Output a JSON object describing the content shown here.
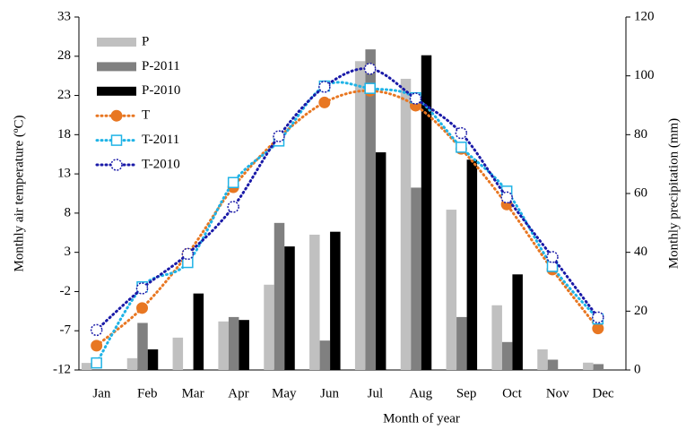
{
  "chart_data": {
    "type": "bar-line",
    "x_label": "Month  of year",
    "y_label": "Monthly air temperature (ºC)",
    "y2_label": "Monthly precipitation (mm)",
    "categories": [
      "Jan",
      "Feb",
      "Mar",
      "Apr",
      "May",
      "Jun",
      "Jul",
      "Aug",
      "Sep",
      "Oct",
      "Nov",
      "Dec"
    ],
    "ylim": [
      -12,
      33
    ],
    "yticks": [
      -12,
      -7,
      -2,
      3,
      8,
      13,
      18,
      23,
      28,
      33
    ],
    "y2lim": [
      0,
      120
    ],
    "y2ticks": [
      0,
      20,
      40,
      60,
      80,
      100,
      120
    ],
    "legend": "upper left",
    "series": [
      {
        "name": "P",
        "type": "bar",
        "axis": "y2",
        "color": "#c0c0c0",
        "values": [
          2.4,
          4,
          11,
          16.5,
          29,
          46,
          105,
          99,
          54.5,
          22,
          7,
          2.5
        ]
      },
      {
        "name": "P-2011",
        "type": "bar",
        "axis": "y2",
        "color": "#808080",
        "values": [
          0,
          16,
          0,
          18,
          50,
          10,
          109,
          62,
          18,
          9.5,
          3.5,
          2
        ]
      },
      {
        "name": "P-2010",
        "type": "bar",
        "axis": "y2",
        "color": "#000000",
        "values": [
          0,
          7,
          26,
          17,
          42,
          47,
          74,
          107,
          71.5,
          32.5,
          0,
          0
        ]
      },
      {
        "name": "T",
        "type": "line",
        "color": "#e87722",
        "marker": "filled-circle",
        "values": [
          -8.9,
          -4.1,
          2.8,
          11.3,
          17.6,
          22.1,
          23.6,
          21.7,
          16.2,
          9.1,
          0.8,
          -6.7
        ]
      },
      {
        "name": "T-2011",
        "type": "line",
        "color": "#1fb3e6",
        "marker": "open-square",
        "values": [
          -11.1,
          -1.4,
          1.7,
          11.9,
          17.2,
          24.2,
          23.9,
          22.7,
          16.4,
          10.8,
          1.2,
          -5.5
        ]
      },
      {
        "name": "T-2010",
        "type": "line",
        "color": "#1a1aa8",
        "marker": "open-circle",
        "values": [
          -6.9,
          -1.6,
          2.8,
          8.8,
          17.8,
          24.1,
          26.4,
          22.6,
          18.2,
          10,
          2.4,
          -5.3
        ]
      }
    ]
  }
}
